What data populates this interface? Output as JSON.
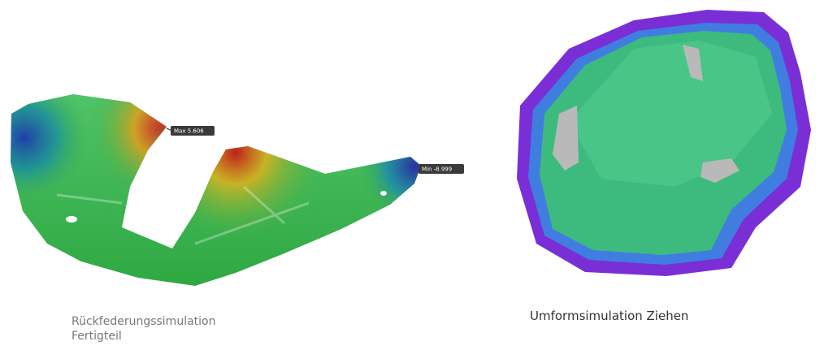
{
  "left_panel": {
    "max_label": "Max 5.606",
    "min_label": "Min -8.999",
    "caption": [
      "Rückfederungssimulation",
      "Fertigteil"
    ]
  },
  "right_panel": {
    "caption": "Umformsimulation Ziehen"
  }
}
